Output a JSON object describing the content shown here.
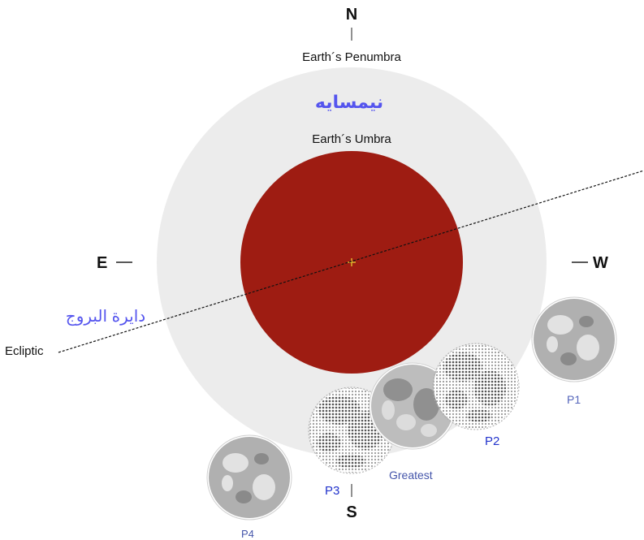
{
  "directions": {
    "north": "N",
    "south": "S",
    "east": "E",
    "west": "W"
  },
  "labels": {
    "penumbra": "Earth´s Penumbra",
    "penumbra_fa": "نیمسایه",
    "umbra": "Earth´s Umbra",
    "ecliptic": "Ecliptic",
    "ecliptic_ar": "دايرة البروج"
  },
  "phases": {
    "p1": "P1",
    "p2": "P2",
    "greatest": "Greatest",
    "p3": "P3",
    "p4": "P4"
  },
  "colors": {
    "penumbra": "#ececec",
    "umbra": "#9e1c12",
    "center_mark": "#e8c830",
    "moon": "#a9a9a9",
    "moon_light": "#d9d9d9",
    "moon_dark": "#6f6f6f",
    "label_blue": "#2233cc",
    "label_violet": "#5555ee",
    "text": "#111111"
  }
}
